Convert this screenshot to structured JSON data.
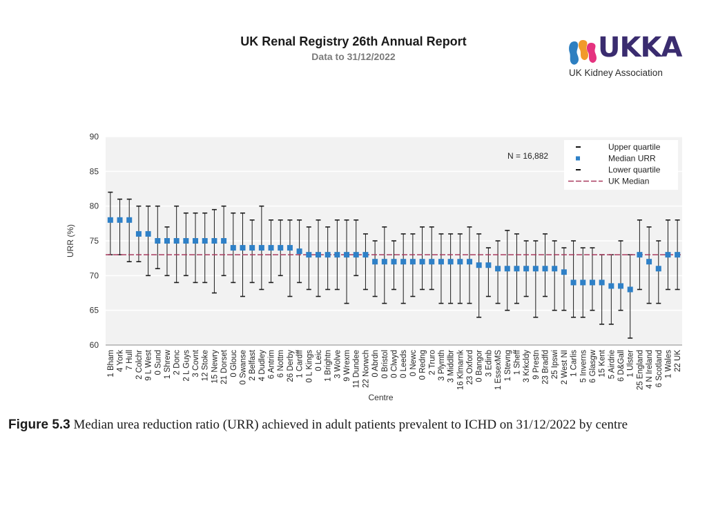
{
  "header": {
    "title": "UK Renal Registry 26th Annual Report",
    "subtitle": "Data to 31/12/2022"
  },
  "logo": {
    "wordmark": "UKKA",
    "text": "UK Kidney Association",
    "colors": {
      "blue": "#2d7fc1",
      "orange": "#f19a2b",
      "pink": "#e5327f",
      "navy": "#3a2c6f"
    }
  },
  "caption": {
    "figure_label": "Figure 5.3",
    "text": "Median urea reduction ratio (URR) achieved in adult patients prevalent to ICHD on 31/12/2022 by centre"
  },
  "chart_data": {
    "type": "scatter",
    "title": "",
    "xlabel": "Centre",
    "ylabel": "URR (%)",
    "ylim": [
      60,
      90
    ],
    "yticks": [
      60,
      65,
      70,
      75,
      80,
      85,
      90
    ],
    "annotation": "N = 16,882",
    "reference_line": {
      "label": "UK Median",
      "value": 73,
      "color": "#a83a5e"
    },
    "legend": {
      "position": "top-right",
      "items": [
        "Upper quartile",
        "Median URR",
        "Lower quartile",
        "UK Median"
      ]
    },
    "colors": {
      "median": "#2e80c7",
      "whisker": "#1a1a1a",
      "plot_bg": "#f2f2f2",
      "grid": "#ffffff"
    },
    "categories": [
      "1 Bham",
      "4 York",
      "7 Hull",
      "2 Colchr",
      "9 L West",
      "0 Sund",
      "1 Shrew",
      "2 Donc",
      "2 L Guys",
      "3 Covnt",
      "12 Stoke",
      "15 Newry",
      "21 Dorset",
      "0 Glouc",
      "0 Swanse",
      "2 Belfast",
      "4 Dudley",
      "6 Antrim",
      "6 Nottm",
      "26 Derby",
      "1 Cardff",
      "0 L Kings",
      "0 Leic",
      "1 Brightn",
      "3 Wolve",
      "9 Wrexm",
      "11 Dundee",
      "22 Norwch",
      "0 Abrdn",
      "0 Bristol",
      "0 Clwyd",
      "0 Leeds",
      "0 Newc",
      "0 Redng",
      "2 Truro",
      "3 Plymth",
      "3 Middlbr",
      "16 Klmarnk",
      "23 Oxford",
      "0 Bangor",
      "3 Edinb",
      "1 EssexMS",
      "1 Stevng",
      "1 Sheff",
      "3 Krkcldy",
      "9 Prestn",
      "23 Bradfd",
      "25 Ipswi",
      "2 West NI",
      "1 Carlis",
      "5 Inverns",
      "6 Glasgw",
      "15 Kent",
      "5 Airdrie",
      "6 D&Gall",
      "1 Ulster",
      "25 England",
      "4 N Ireland",
      "6 Scotland",
      "1 Wales",
      "22 UK"
    ],
    "series": [
      {
        "name": "Upper quartile",
        "values": [
          82,
          81,
          81,
          80,
          80,
          80,
          77,
          80,
          79,
          79,
          79,
          79.5,
          80,
          79,
          79,
          78,
          80,
          78,
          78,
          78,
          78,
          77,
          78,
          77,
          78,
          78,
          78,
          76,
          75,
          77,
          75,
          76,
          76,
          77,
          77,
          76,
          76,
          76,
          77,
          76,
          74,
          75,
          76.5,
          76,
          75,
          75,
          76,
          75,
          74,
          75,
          74,
          74,
          73,
          73,
          75,
          73,
          78,
          77,
          75,
          78,
          78
        ]
      },
      {
        "name": "Median URR",
        "values": [
          78,
          78,
          78,
          76,
          76,
          75,
          75,
          75,
          75,
          75,
          75,
          75,
          75,
          74,
          74,
          74,
          74,
          74,
          74,
          74,
          73.5,
          73,
          73,
          73,
          73,
          73,
          73,
          73,
          72,
          72,
          72,
          72,
          72,
          72,
          72,
          72,
          72,
          72,
          72,
          71.5,
          71.5,
          71,
          71,
          71,
          71,
          71,
          71,
          71,
          70.5,
          69,
          69,
          69,
          69,
          68.5,
          68.5,
          68,
          73,
          72,
          71,
          73,
          73
        ]
      },
      {
        "name": "Lower quartile",
        "values": [
          73,
          73,
          72,
          72,
          70,
          71,
          70,
          69,
          70,
          69,
          69,
          67.5,
          70,
          69,
          67,
          69,
          68,
          69,
          70,
          67,
          69,
          68,
          67,
          68,
          68,
          66,
          70,
          68,
          67,
          66,
          68,
          66,
          67,
          68,
          68,
          66,
          66,
          66,
          66,
          64,
          67,
          66,
          65,
          66,
          67,
          64,
          67,
          65,
          65,
          64,
          64,
          65,
          63,
          63,
          65,
          61,
          68,
          66,
          66,
          68,
          68
        ]
      }
    ]
  }
}
